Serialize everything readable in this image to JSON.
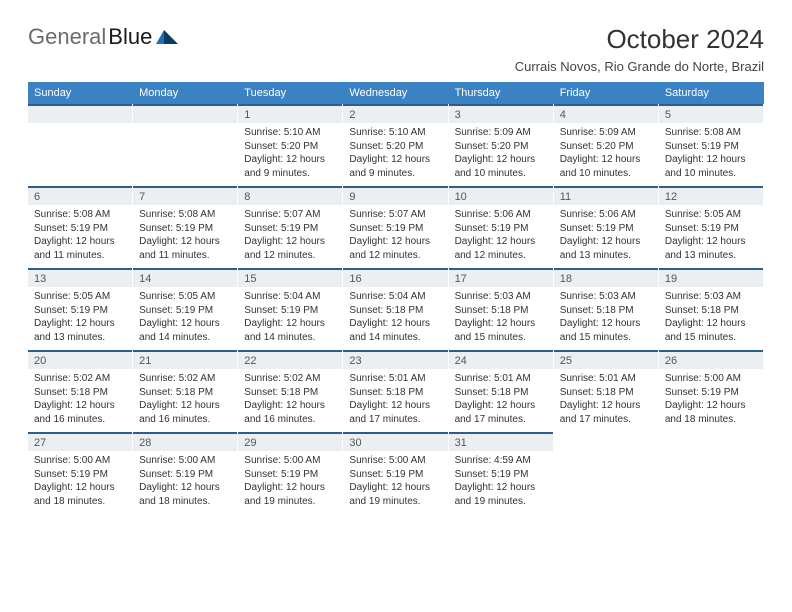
{
  "logo": {
    "word1": "General",
    "word2": "Blue"
  },
  "title": "October 2024",
  "subtitle": "Currais Novos, Rio Grande do Norte, Brazil",
  "colors": {
    "header_bg": "#3b82c4",
    "header_text": "#ffffff",
    "daynum_bg": "#eceff1",
    "daynum_border_top": "#2e5e8a",
    "text": "#333333",
    "logo_gray": "#6b6b6b",
    "logo_blue": "#1f6fb2",
    "logo_dark": "#0b3a66"
  },
  "weekdays": [
    "Sunday",
    "Monday",
    "Tuesday",
    "Wednesday",
    "Thursday",
    "Friday",
    "Saturday"
  ],
  "weeks": [
    [
      null,
      null,
      {
        "n": "1",
        "sunrise": "5:10 AM",
        "sunset": "5:20 PM",
        "daylight": "12 hours and 9 minutes."
      },
      {
        "n": "2",
        "sunrise": "5:10 AM",
        "sunset": "5:20 PM",
        "daylight": "12 hours and 9 minutes."
      },
      {
        "n": "3",
        "sunrise": "5:09 AM",
        "sunset": "5:20 PM",
        "daylight": "12 hours and 10 minutes."
      },
      {
        "n": "4",
        "sunrise": "5:09 AM",
        "sunset": "5:20 PM",
        "daylight": "12 hours and 10 minutes."
      },
      {
        "n": "5",
        "sunrise": "5:08 AM",
        "sunset": "5:19 PM",
        "daylight": "12 hours and 10 minutes."
      }
    ],
    [
      {
        "n": "6",
        "sunrise": "5:08 AM",
        "sunset": "5:19 PM",
        "daylight": "12 hours and 11 minutes."
      },
      {
        "n": "7",
        "sunrise": "5:08 AM",
        "sunset": "5:19 PM",
        "daylight": "12 hours and 11 minutes."
      },
      {
        "n": "8",
        "sunrise": "5:07 AM",
        "sunset": "5:19 PM",
        "daylight": "12 hours and 12 minutes."
      },
      {
        "n": "9",
        "sunrise": "5:07 AM",
        "sunset": "5:19 PM",
        "daylight": "12 hours and 12 minutes."
      },
      {
        "n": "10",
        "sunrise": "5:06 AM",
        "sunset": "5:19 PM",
        "daylight": "12 hours and 12 minutes."
      },
      {
        "n": "11",
        "sunrise": "5:06 AM",
        "sunset": "5:19 PM",
        "daylight": "12 hours and 13 minutes."
      },
      {
        "n": "12",
        "sunrise": "5:05 AM",
        "sunset": "5:19 PM",
        "daylight": "12 hours and 13 minutes."
      }
    ],
    [
      {
        "n": "13",
        "sunrise": "5:05 AM",
        "sunset": "5:19 PM",
        "daylight": "12 hours and 13 minutes."
      },
      {
        "n": "14",
        "sunrise": "5:05 AM",
        "sunset": "5:19 PM",
        "daylight": "12 hours and 14 minutes."
      },
      {
        "n": "15",
        "sunrise": "5:04 AM",
        "sunset": "5:19 PM",
        "daylight": "12 hours and 14 minutes."
      },
      {
        "n": "16",
        "sunrise": "5:04 AM",
        "sunset": "5:18 PM",
        "daylight": "12 hours and 14 minutes."
      },
      {
        "n": "17",
        "sunrise": "5:03 AM",
        "sunset": "5:18 PM",
        "daylight": "12 hours and 15 minutes."
      },
      {
        "n": "18",
        "sunrise": "5:03 AM",
        "sunset": "5:18 PM",
        "daylight": "12 hours and 15 minutes."
      },
      {
        "n": "19",
        "sunrise": "5:03 AM",
        "sunset": "5:18 PM",
        "daylight": "12 hours and 15 minutes."
      }
    ],
    [
      {
        "n": "20",
        "sunrise": "5:02 AM",
        "sunset": "5:18 PM",
        "daylight": "12 hours and 16 minutes."
      },
      {
        "n": "21",
        "sunrise": "5:02 AM",
        "sunset": "5:18 PM",
        "daylight": "12 hours and 16 minutes."
      },
      {
        "n": "22",
        "sunrise": "5:02 AM",
        "sunset": "5:18 PM",
        "daylight": "12 hours and 16 minutes."
      },
      {
        "n": "23",
        "sunrise": "5:01 AM",
        "sunset": "5:18 PM",
        "daylight": "12 hours and 17 minutes."
      },
      {
        "n": "24",
        "sunrise": "5:01 AM",
        "sunset": "5:18 PM",
        "daylight": "12 hours and 17 minutes."
      },
      {
        "n": "25",
        "sunrise": "5:01 AM",
        "sunset": "5:18 PM",
        "daylight": "12 hours and 17 minutes."
      },
      {
        "n": "26",
        "sunrise": "5:00 AM",
        "sunset": "5:19 PM",
        "daylight": "12 hours and 18 minutes."
      }
    ],
    [
      {
        "n": "27",
        "sunrise": "5:00 AM",
        "sunset": "5:19 PM",
        "daylight": "12 hours and 18 minutes."
      },
      {
        "n": "28",
        "sunrise": "5:00 AM",
        "sunset": "5:19 PM",
        "daylight": "12 hours and 18 minutes."
      },
      {
        "n": "29",
        "sunrise": "5:00 AM",
        "sunset": "5:19 PM",
        "daylight": "12 hours and 19 minutes."
      },
      {
        "n": "30",
        "sunrise": "5:00 AM",
        "sunset": "5:19 PM",
        "daylight": "12 hours and 19 minutes."
      },
      {
        "n": "31",
        "sunrise": "4:59 AM",
        "sunset": "5:19 PM",
        "daylight": "12 hours and 19 minutes."
      },
      null,
      null
    ]
  ],
  "labels": {
    "sunrise": "Sunrise:",
    "sunset": "Sunset:",
    "daylight": "Daylight:"
  }
}
